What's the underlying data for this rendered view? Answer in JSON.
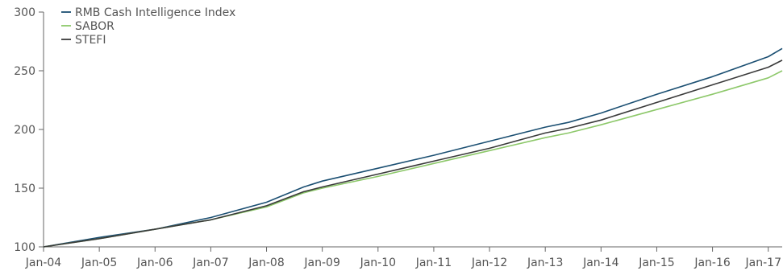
{
  "chart_data": {
    "type": "line",
    "x": [
      "Jan-04",
      "Jan-05",
      "Jan-06",
      "Jan-07",
      "Jan-08",
      "Jan-09",
      "Jan-10",
      "Jan-11",
      "Jan-12",
      "Jan-13",
      "Jan-14",
      "Jan-15",
      "Jan-16",
      "Jan-17"
    ],
    "x_ticks": [
      "Jan-04",
      "Jan-05",
      "Jan-06",
      "Jan-07",
      "Jan-08",
      "Jan-09",
      "Jan-10",
      "Jan-11",
      "Jan-12",
      "Jan-13",
      "Jan-14",
      "Jan-15",
      "Jan-16",
      "Jan-17"
    ],
    "y_ticks": [
      100,
      150,
      200,
      250,
      300
    ],
    "ylim": [
      100,
      300
    ],
    "xlim": [
      "Jan-04",
      "Apr-17"
    ],
    "grid": false,
    "legend_position": "top-left",
    "title": "",
    "xlabel": "",
    "ylabel": "",
    "series": [
      {
        "name": "RMB Cash Intelligence Index",
        "color": "#1b4f72",
        "points": [
          [
            "Jan-04",
            100
          ],
          [
            "Jan-05",
            108
          ],
          [
            "Jan-06",
            115
          ],
          [
            "Jan-07",
            125
          ],
          [
            "Jan-08",
            138
          ],
          [
            "Sep-08",
            151
          ],
          [
            "Jan-09",
            156
          ],
          [
            "Jan-10",
            167
          ],
          [
            "Jan-11",
            178
          ],
          [
            "Jan-12",
            190
          ],
          [
            "Jan-13",
            202
          ],
          [
            "Jun-13",
            206
          ],
          [
            "Jan-14",
            214
          ],
          [
            "Jan-15",
            230
          ],
          [
            "Jan-16",
            245
          ],
          [
            "Jan-17",
            262
          ],
          [
            "Apr-17",
            269
          ]
        ]
      },
      {
        "name": "SABOR",
        "color": "#8dc86a",
        "points": [
          [
            "Jan-04",
            100
          ],
          [
            "Jan-05",
            107
          ],
          [
            "Jan-06",
            115
          ],
          [
            "Jan-07",
            123
          ],
          [
            "Jan-08",
            134
          ],
          [
            "Sep-08",
            146
          ],
          [
            "Jan-09",
            150
          ],
          [
            "Jan-10",
            160
          ],
          [
            "Jan-11",
            171
          ],
          [
            "Jan-12",
            182
          ],
          [
            "Jan-13",
            193
          ],
          [
            "Jun-13",
            197
          ],
          [
            "Jan-14",
            204
          ],
          [
            "Jan-15",
            217
          ],
          [
            "Jan-16",
            230
          ],
          [
            "Jan-17",
            244
          ],
          [
            "Apr-17",
            250
          ]
        ]
      },
      {
        "name": "STEFI",
        "color": "#3a3a3a",
        "points": [
          [
            "Jan-04",
            100
          ],
          [
            "Jan-05",
            107
          ],
          [
            "Jan-06",
            115
          ],
          [
            "Jan-07",
            123
          ],
          [
            "Jan-08",
            135
          ],
          [
            "Sep-08",
            147
          ],
          [
            "Jan-09",
            151
          ],
          [
            "Jan-10",
            162
          ],
          [
            "Jan-11",
            173
          ],
          [
            "Jan-12",
            184
          ],
          [
            "Jan-13",
            197
          ],
          [
            "Jun-13",
            201
          ],
          [
            "Jan-14",
            208
          ],
          [
            "Jan-15",
            223
          ],
          [
            "Jan-16",
            238
          ],
          [
            "Jan-17",
            253
          ],
          [
            "Apr-17",
            259
          ]
        ]
      }
    ]
  }
}
